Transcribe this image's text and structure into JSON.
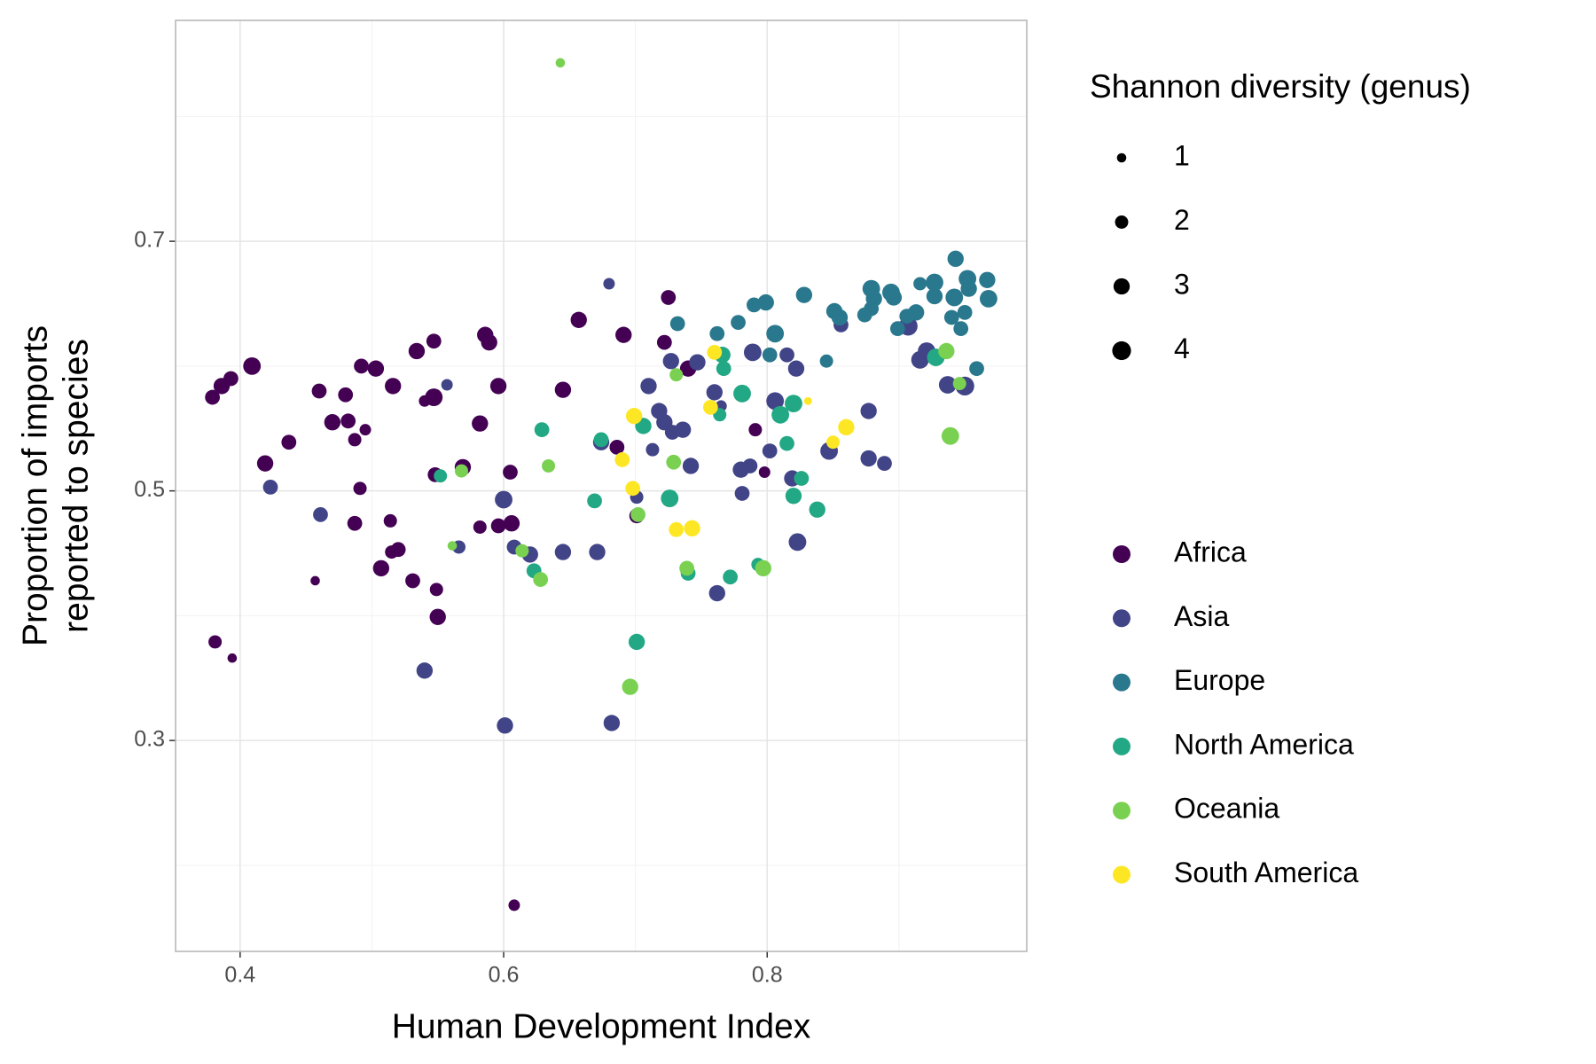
{
  "chart_data": {
    "type": "scatter",
    "xlabel": "Human Development Index",
    "ylabel": [
      "Proportion of imports",
      "reported to species"
    ],
    "xlim": [
      0.351,
      0.997
    ],
    "ylim": [
      0.131,
      0.877
    ],
    "xticks": [
      0.4,
      0.6,
      0.8
    ],
    "yticks": [
      0.3,
      0.5,
      0.7
    ],
    "minor_xticks": [
      0.5,
      0.7,
      0.9
    ],
    "minor_yticks": [
      0.2,
      0.4,
      0.6,
      0.8
    ],
    "grid": true,
    "size_legend": {
      "title": "Shannon diversity (genus)",
      "values": [
        1,
        2,
        3,
        4
      ]
    },
    "series": [
      {
        "name": "Africa",
        "color": "#440154",
        "x": [
          0.379,
          0.386,
          0.393,
          0.409,
          0.419,
          0.437,
          0.46,
          0.48,
          0.47,
          0.482,
          0.487,
          0.495,
          0.492,
          0.503,
          0.516,
          0.534,
          0.547,
          0.54,
          0.547,
          0.491,
          0.487,
          0.514,
          0.52,
          0.515,
          0.507,
          0.531,
          0.549,
          0.55,
          0.548,
          0.569,
          0.457,
          0.381,
          0.394,
          0.586,
          0.589,
          0.582,
          0.596,
          0.582,
          0.596,
          0.606,
          0.605,
          0.608,
          0.645,
          0.657,
          0.686,
          0.691,
          0.701,
          0.722,
          0.725,
          0.74,
          0.791,
          0.798
        ],
        "y": [
          0.575,
          0.584,
          0.59,
          0.6,
          0.522,
          0.539,
          0.58,
          0.577,
          0.555,
          0.556,
          0.541,
          0.549,
          0.6,
          0.598,
          0.584,
          0.612,
          0.62,
          0.572,
          0.575,
          0.502,
          0.474,
          0.476,
          0.453,
          0.451,
          0.438,
          0.428,
          0.421,
          0.399,
          0.513,
          0.519,
          0.428,
          0.379,
          0.366,
          0.625,
          0.619,
          0.554,
          0.584,
          0.471,
          0.472,
          0.474,
          0.515,
          0.168,
          0.581,
          0.637,
          0.535,
          0.625,
          0.48,
          0.619,
          0.655,
          0.598,
          0.549,
          0.515
        ],
        "sizes": [
          2.5,
          3,
          2.5,
          3.5,
          3,
          2.5,
          2.5,
          2.5,
          3,
          2.5,
          2,
          1.5,
          2.5,
          3,
          3,
          3,
          2.5,
          1.5,
          3.5,
          2,
          2.5,
          2,
          2.5,
          2,
          3,
          2.5,
          2,
          3,
          2.5,
          3,
          1,
          2,
          1,
          3,
          3,
          3,
          3,
          2,
          2.5,
          3,
          2.5,
          1.5,
          3,
          3,
          2.5,
          3,
          2.5,
          2.5,
          2.5,
          3,
          2,
          1.5
        ]
      },
      {
        "name": "Asia",
        "color": "#414487",
        "x": [
          0.423,
          0.461,
          0.557,
          0.566,
          0.54,
          0.6,
          0.608,
          0.62,
          0.645,
          0.601,
          0.671,
          0.674,
          0.68,
          0.682,
          0.701,
          0.71,
          0.713,
          0.718,
          0.722,
          0.727,
          0.728,
          0.736,
          0.742,
          0.747,
          0.76,
          0.762,
          0.765,
          0.781,
          0.78,
          0.787,
          0.789,
          0.802,
          0.806,
          0.815,
          0.819,
          0.822,
          0.823,
          0.847,
          0.856,
          0.877,
          0.877,
          0.889,
          0.907,
          0.916,
          0.921,
          0.937,
          0.95
        ],
        "y": [
          0.503,
          0.481,
          0.585,
          0.455,
          0.356,
          0.493,
          0.455,
          0.449,
          0.451,
          0.312,
          0.451,
          0.539,
          0.666,
          0.314,
          0.495,
          0.584,
          0.533,
          0.564,
          0.555,
          0.604,
          0.547,
          0.549,
          0.52,
          0.603,
          0.579,
          0.418,
          0.568,
          0.498,
          0.517,
          0.52,
          0.611,
          0.532,
          0.572,
          0.609,
          0.51,
          0.598,
          0.459,
          0.532,
          0.633,
          0.564,
          0.526,
          0.522,
          0.632,
          0.605,
          0.612,
          0.585,
          0.584
        ],
        "sizes": [
          2.5,
          2.5,
          1.5,
          2,
          3,
          3.5,
          2.5,
          3,
          3,
          3,
          3,
          3,
          1.5,
          3,
          2,
          3,
          2,
          3,
          3,
          3,
          2.5,
          3,
          3,
          3,
          3,
          3,
          1.5,
          2.5,
          3,
          2.5,
          3.5,
          2.5,
          3.5,
          2.5,
          3,
          3,
          3.5,
          3.5,
          2.5,
          3,
          3,
          2.5,
          4,
          3.5,
          3.5,
          3.5,
          4
        ]
      },
      {
        "name": "Europe",
        "color": "#2A788E",
        "x": [
          0.732,
          0.762,
          0.778,
          0.79,
          0.799,
          0.802,
          0.806,
          0.828,
          0.845,
          0.851,
          0.855,
          0.874,
          0.879,
          0.881,
          0.879,
          0.894,
          0.896,
          0.899,
          0.906,
          0.913,
          0.916,
          0.927,
          0.927,
          0.943,
          0.942,
          0.94,
          0.947,
          0.95,
          0.952,
          0.953,
          0.967,
          0.968,
          0.959
        ],
        "y": [
          0.634,
          0.626,
          0.635,
          0.649,
          0.651,
          0.609,
          0.626,
          0.657,
          0.604,
          0.644,
          0.639,
          0.641,
          0.662,
          0.654,
          0.646,
          0.659,
          0.655,
          0.63,
          0.64,
          0.643,
          0.666,
          0.667,
          0.656,
          0.686,
          0.655,
          0.639,
          0.63,
          0.643,
          0.67,
          0.662,
          0.669,
          0.654,
          0.598
        ],
        "sizes": [
          2.5,
          2.5,
          2.5,
          2.5,
          3,
          2.5,
          3.5,
          3,
          2,
          3,
          3,
          2.5,
          3.5,
          3,
          2.5,
          3.5,
          3,
          2.5,
          2.5,
          3,
          2,
          3.5,
          3,
          3,
          3.5,
          2.5,
          2.5,
          2.5,
          3.5,
          3,
          3,
          3.5,
          2.5
        ]
      },
      {
        "name": "North America",
        "color": "#22A884",
        "x": [
          0.552,
          0.629,
          0.623,
          0.669,
          0.674,
          0.701,
          0.706,
          0.726,
          0.74,
          0.766,
          0.767,
          0.764,
          0.772,
          0.781,
          0.793,
          0.81,
          0.815,
          0.82,
          0.82,
          0.826,
          0.838,
          0.928
        ],
        "y": [
          0.512,
          0.549,
          0.436,
          0.492,
          0.541,
          0.379,
          0.552,
          0.494,
          0.434,
          0.609,
          0.598,
          0.561,
          0.431,
          0.578,
          0.441,
          0.561,
          0.538,
          0.57,
          0.496,
          0.51,
          0.485,
          0.607
        ],
        "sizes": [
          2,
          2.5,
          2.5,
          2.5,
          2.5,
          3,
          3,
          3.5,
          2.5,
          3,
          2.5,
          2,
          2.5,
          3.5,
          2,
          3.5,
          2.5,
          3.5,
          3,
          2.5,
          3,
          3.5
        ]
      },
      {
        "name": "Oceania",
        "color": "#7AD151",
        "x": [
          0.643,
          0.568,
          0.561,
          0.614,
          0.628,
          0.634,
          0.696,
          0.702,
          0.729,
          0.731,
          0.739,
          0.797,
          0.939,
          0.936,
          0.946
        ],
        "y": [
          0.843,
          0.516,
          0.456,
          0.452,
          0.429,
          0.52,
          0.343,
          0.481,
          0.523,
          0.593,
          0.438,
          0.438,
          0.544,
          0.612,
          0.586
        ],
        "sizes": [
          1,
          2,
          1,
          2,
          2.5,
          2,
          3,
          2.5,
          2.5,
          2,
          2.5,
          3,
          3.5,
          3,
          2
        ]
      },
      {
        "name": "South America",
        "color": "#FDE725",
        "x": [
          0.69,
          0.698,
          0.699,
          0.731,
          0.743,
          0.757,
          0.76,
          0.831,
          0.85,
          0.86
        ],
        "y": [
          0.525,
          0.502,
          0.56,
          0.469,
          0.47,
          0.567,
          0.611,
          0.572,
          0.539,
          0.551
        ],
        "sizes": [
          2.5,
          2.5,
          3,
          2.5,
          3,
          2.5,
          2.5,
          0.7,
          2,
          3
        ]
      }
    ]
  }
}
